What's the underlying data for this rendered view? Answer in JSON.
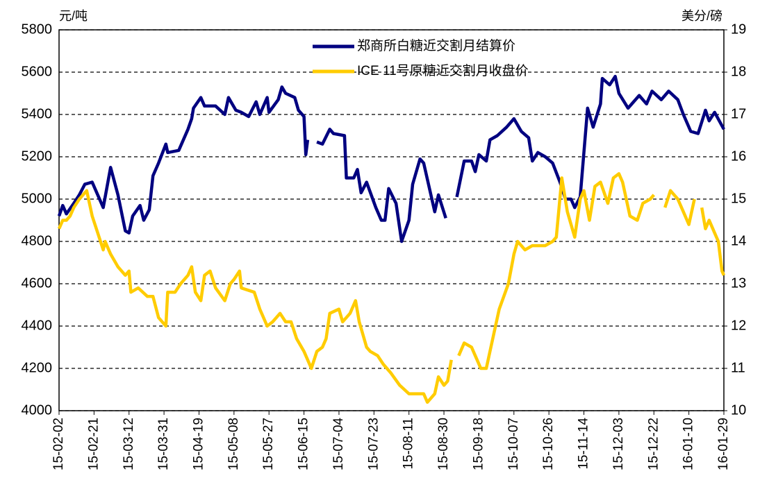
{
  "chart_data": {
    "type": "line",
    "ylabel": "元/吨",
    "y2label": "美分/磅",
    "ylim": [
      4000,
      5800
    ],
    "yticks": [
      4000,
      4200,
      4400,
      4600,
      4800,
      5000,
      5200,
      5400,
      5600,
      5800
    ],
    "y2lim": [
      10,
      19
    ],
    "y2ticks": [
      10,
      11,
      12,
      13,
      14,
      15,
      16,
      17,
      18,
      19
    ],
    "xlim": [
      "15-02-02",
      "16-01-29"
    ],
    "xticks": [
      "15-02-02",
      "15-02-21",
      "15-03-12",
      "15-03-31",
      "15-04-19",
      "15-05-08",
      "15-05-27",
      "15-06-15",
      "15-07-04",
      "15-07-23",
      "15-08-11",
      "15-08-30",
      "15-09-18",
      "15-10-07",
      "15-10-26",
      "15-11-14",
      "15-12-03",
      "15-12-22",
      "16-01-10",
      "16-01-29"
    ],
    "grid": true,
    "legend": "top",
    "series": [
      {
        "name": "郑商所白糖近交割月结算价",
        "color": "#000080",
        "axis": "y",
        "x": [
          "15-02-02",
          "15-02-04",
          "15-02-06",
          "15-02-10",
          "15-02-13",
          "15-02-16",
          "15-02-20",
          "15-02-26",
          "15-03-02",
          "15-03-06",
          "15-03-10",
          "15-03-12",
          "15-03-14",
          "15-03-18",
          "15-03-20",
          "15-03-23",
          "15-03-25",
          "15-03-28",
          "15-04-01",
          "15-04-02",
          "15-04-08",
          "15-04-13",
          "15-04-15",
          "15-04-16",
          "15-04-20",
          "15-04-22",
          "15-04-28",
          "15-05-03",
          "15-05-05",
          "15-05-09",
          "15-05-12",
          "15-05-16",
          "15-05-20",
          "15-05-22",
          "15-05-26",
          "15-05-27",
          "15-06-01",
          "15-06-03",
          "15-06-05",
          "15-06-10",
          "15-06-12",
          "15-06-15",
          "15-06-16",
          "15-06-17",
          "15-06-19",
          "15-06-22",
          "15-06-25",
          "15-06-29",
          "15-07-01",
          "15-07-07",
          "15-07-08",
          "15-07-12",
          "15-07-14",
          "15-07-16",
          "15-07-19",
          "15-07-24",
          "15-07-27",
          "15-07-29",
          "15-07-31",
          "15-08-04",
          "15-08-07",
          "15-08-11",
          "15-08-13",
          "15-08-17",
          "15-08-19",
          "15-08-25",
          "15-08-27",
          "15-08-31",
          "15-09-03",
          "15-09-06",
          "15-09-10",
          "15-09-14",
          "15-09-16",
          "15-09-18",
          "15-09-22",
          "15-09-24",
          "15-09-28",
          "15-10-03",
          "15-10-07",
          "15-10-11",
          "15-10-15",
          "15-10-17",
          "15-10-20",
          "15-10-24",
          "15-10-28",
          "15-11-01",
          "15-11-04",
          "15-11-07",
          "15-11-09",
          "15-11-12",
          "15-11-16",
          "15-11-19",
          "15-11-23",
          "15-11-24",
          "15-11-28",
          "15-12-01",
          "15-12-03",
          "15-12-08",
          "15-12-14",
          "15-12-18",
          "15-12-21",
          "15-12-26",
          "15-12-30",
          "16-01-04",
          "16-01-07",
          "16-01-11",
          "16-01-15",
          "16-01-19",
          "16-01-21",
          "16-01-24",
          "16-01-29"
        ],
        "values": [
          4920,
          4970,
          4930,
          4980,
          5020,
          5070,
          5080,
          4960,
          5150,
          5020,
          4850,
          4840,
          4920,
          4970,
          4900,
          4950,
          5110,
          5170,
          5260,
          5220,
          5230,
          5330,
          5380,
          5430,
          5480,
          5440,
          5440,
          5400,
          5480,
          5420,
          5410,
          5390,
          5460,
          5400,
          5480,
          5410,
          5470,
          5530,
          5500,
          5480,
          5420,
          5390,
          5210,
          5280,
          null,
          5270,
          5260,
          5330,
          5310,
          5300,
          5100,
          5100,
          5140,
          5030,
          5080,
          4960,
          4900,
          4900,
          5050,
          4980,
          4800,
          4900,
          5070,
          5190,
          5170,
          4940,
          5020,
          4910,
          null,
          5010,
          5180,
          5180,
          5130,
          5210,
          5180,
          5280,
          5300,
          5340,
          5380,
          5320,
          5290,
          5180,
          5220,
          5200,
          5170,
          5080,
          5000,
          5000,
          4960,
          5010,
          5430,
          5340,
          5450,
          5570,
          5540,
          5580,
          5500,
          5430,
          5490,
          5450,
          5510,
          5470,
          5510,
          5470,
          5400,
          5320,
          5310,
          5420,
          5370,
          5410,
          5330
        ]
      },
      {
        "name": "ICE 11号原糖近交割月收盘价",
        "color": "#ffcc00",
        "axis": "y2",
        "x": [
          "15-02-02",
          "15-02-04",
          "15-02-06",
          "15-02-08",
          "15-02-10",
          "15-02-13",
          "15-02-15",
          "15-02-17",
          "15-02-20",
          "15-02-23",
          "15-02-26",
          "15-02-27",
          "15-03-02",
          "15-03-06",
          "15-03-10",
          "15-03-12",
          "15-03-13",
          "15-03-17",
          "15-03-22",
          "15-03-25",
          "15-03-28",
          "15-04-01",
          "15-04-02",
          "15-04-06",
          "15-04-09",
          "15-04-13",
          "15-04-15",
          "15-04-17",
          "15-04-20",
          "15-04-22",
          "15-04-25",
          "15-04-28",
          "15-05-03",
          "15-05-06",
          "15-05-08",
          "15-05-11",
          "15-05-12",
          "15-05-19",
          "15-05-22",
          "15-05-26",
          "15-05-29",
          "15-06-02",
          "15-06-05",
          "15-06-08",
          "15-06-11",
          "15-06-15",
          "15-06-17",
          "15-06-19",
          "15-06-22",
          "15-06-25",
          "15-06-27",
          "15-06-29",
          "15-07-04",
          "15-07-06",
          "15-07-10",
          "15-07-13",
          "15-07-15",
          "15-07-19",
          "15-07-21",
          "15-07-25",
          "15-07-28",
          "15-08-01",
          "15-08-06",
          "15-08-11",
          "15-08-16",
          "15-08-19",
          "15-08-21",
          "15-08-25",
          "15-08-27",
          "15-08-30",
          "15-09-01",
          "15-09-03",
          "15-09-05",
          "15-09-07",
          "15-09-10",
          "15-09-14",
          "15-09-16",
          "15-09-19",
          "15-09-22",
          "15-09-26",
          "15-09-29",
          "15-10-04",
          "15-10-07",
          "15-10-09",
          "15-10-13",
          "15-10-17",
          "15-10-20",
          "15-10-24",
          "15-10-28",
          "15-10-30",
          "15-11-02",
          "15-11-05",
          "15-11-09",
          "15-11-12",
          "15-11-14",
          "15-11-17",
          "15-11-20",
          "15-11-23",
          "15-11-27",
          "15-11-30",
          "15-12-03",
          "15-12-05",
          "15-12-09",
          "15-12-13",
          "15-12-16",
          "15-12-20",
          "15-12-22",
          "15-12-25",
          "15-12-28",
          "15-12-31",
          "16-01-04",
          "16-01-07",
          "16-01-10",
          "16-01-13",
          "16-01-15",
          "16-01-17",
          "16-01-19",
          "16-01-21",
          "16-01-24",
          "16-01-26",
          "16-01-28",
          "16-01-29"
        ],
        "values": [
          14.3,
          14.5,
          14.5,
          14.6,
          14.8,
          15.0,
          15.1,
          15.2,
          14.6,
          14.2,
          13.8,
          14.0,
          13.7,
          13.4,
          13.2,
          13.3,
          12.8,
          12.9,
          12.7,
          12.7,
          12.2,
          12.0,
          12.8,
          12.8,
          13.0,
          13.2,
          13.4,
          12.8,
          12.6,
          13.2,
          13.3,
          12.9,
          12.6,
          13.0,
          13.1,
          13.3,
          12.9,
          12.8,
          12.4,
          12.0,
          12.1,
          12.3,
          12.1,
          12.1,
          11.7,
          11.4,
          11.2,
          11.0,
          11.4,
          11.5,
          11.7,
          12.3,
          12.4,
          12.1,
          12.3,
          12.6,
          12.1,
          11.5,
          11.4,
          11.3,
          11.1,
          10.9,
          10.6,
          10.4,
          10.4,
          10.4,
          10.2,
          10.4,
          10.8,
          10.6,
          10.7,
          11.2,
          null,
          11.3,
          11.6,
          11.5,
          11.3,
          11.0,
          11.0,
          11.8,
          12.4,
          13.0,
          13.7,
          14.0,
          13.8,
          13.9,
          13.9,
          13.9,
          14.0,
          14.1,
          15.5,
          14.7,
          14.1,
          15.0,
          15.2,
          14.5,
          15.3,
          15.4,
          14.9,
          15.5,
          15.6,
          15.4,
          14.6,
          14.5,
          14.9,
          15.0,
          15.1,
          null,
          14.8,
          15.2,
          15.0,
          14.7,
          14.4,
          15.0,
          null,
          14.8,
          14.3,
          14.5,
          14.2,
          14.0,
          13.3,
          13.2
        ]
      }
    ]
  }
}
